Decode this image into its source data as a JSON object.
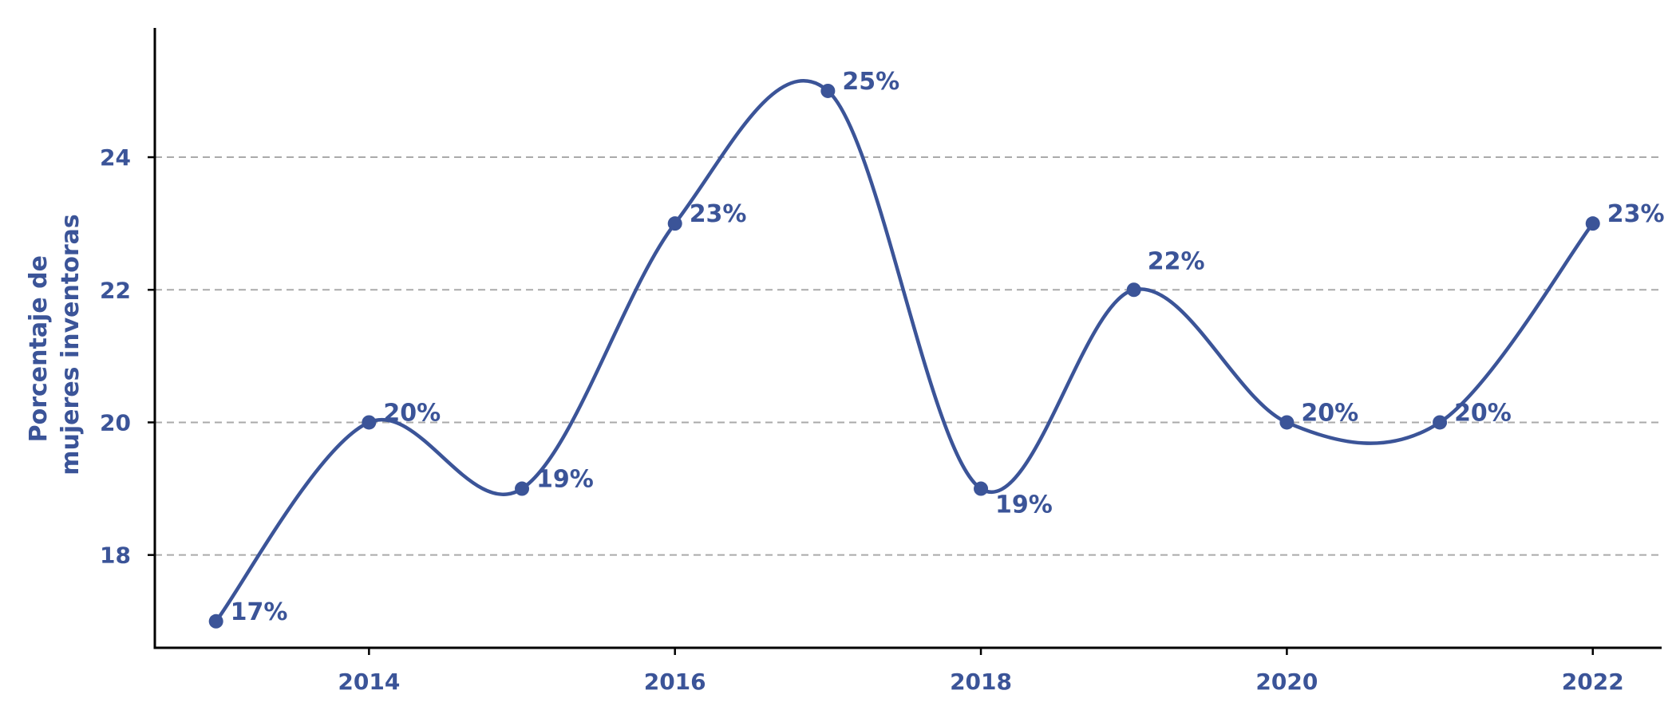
{
  "chart_data": {
    "type": "line",
    "title": "",
    "xlabel": "",
    "ylabel_lines": [
      "Porcentaje de",
      "mujeres inventoras"
    ],
    "x": [
      2013,
      2014,
      2015,
      2016,
      2017,
      2018,
      2019,
      2020,
      2021,
      2022
    ],
    "series": [
      {
        "values": [
          17,
          20,
          19,
          23,
          25,
          19,
          22,
          20,
          20,
          23
        ],
        "labels": [
          "17%",
          "20%",
          "19%",
          "23%",
          "25%",
          "19%",
          "22%",
          "20%",
          "20%",
          "23%"
        ]
      }
    ],
    "xticks": [
      "2014",
      "2016",
      "2018",
      "2020",
      "2022"
    ],
    "yticks": [
      "18",
      "20",
      "22",
      "24"
    ],
    "xlim": [
      2012.6,
      2022.45
    ],
    "ylim": [
      16.6,
      25.95
    ],
    "grid": "horizontal dashed",
    "line_style": "smooth",
    "colors": {
      "series": "#3b5498",
      "text": "#3b5498",
      "grid": "#aaaaaa",
      "axis": "#000000"
    }
  }
}
